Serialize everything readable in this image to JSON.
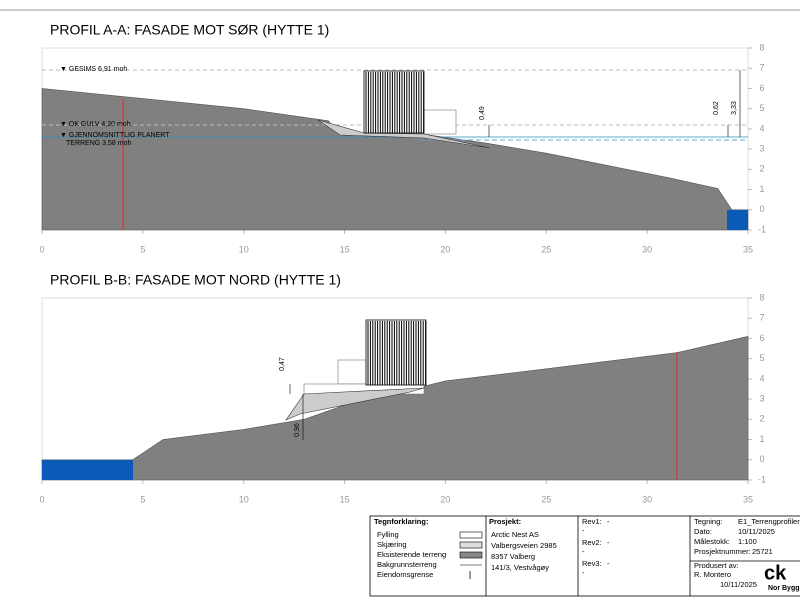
{
  "chart_data": [
    {
      "type": "area",
      "title": "PROFIL A-A: FASADE MOT SØR (HYTTE 1)",
      "x": [
        0,
        4,
        10,
        14.2,
        14.7,
        18.8,
        22,
        25,
        28,
        31,
        33.5,
        34.2,
        35
      ],
      "values": [
        6.0,
        5.6,
        5.0,
        4.4,
        3.75,
        3.75,
        3.3,
        2.8,
        2.2,
        1.6,
        1.05,
        0,
        0
      ],
      "color": "#808080",
      "xlim": [
        0,
        35
      ],
      "xticks": [
        0,
        5,
        10,
        15,
        20,
        25,
        30,
        35
      ],
      "ylim": [
        -1,
        8
      ],
      "yticks": [
        -1,
        0,
        1,
        2,
        3,
        4,
        5,
        6,
        7,
        8
      ],
      "annotations": [
        "▼ GESIMS 6,91 moh",
        "▼ OK GULV 4,20 moh",
        "▼ GJENNOMSNITTLIG PLANERT",
        "TERRENG 3,58 moh",
        "0,49",
        "0,62",
        "3,33"
      ]
    },
    {
      "type": "area",
      "title": "PROFIL B-B: FASADE MOT NORD (HYTTE 1)",
      "x": [
        0,
        4.5,
        6,
        10,
        13,
        15,
        17,
        18.8,
        20,
        25,
        31.5,
        35
      ],
      "values": [
        0,
        0,
        1.0,
        1.5,
        2.0,
        2.7,
        3.2,
        3.6,
        3.9,
        4.5,
        5.3,
        6.1
      ],
      "color": "#808080",
      "xlim": [
        0,
        35
      ],
      "xticks": [
        0,
        5,
        10,
        15,
        20,
        25,
        30,
        35
      ],
      "ylim": [
        -1,
        8
      ],
      "yticks": [
        -1,
        0,
        1,
        2,
        3,
        4,
        5,
        6,
        7,
        8
      ],
      "annotations": [
        "0,47",
        "0,96"
      ]
    }
  ],
  "title_block": {
    "legend_title": "Tegnforklaring:",
    "legend": [
      "Fylling",
      "Skjæring",
      "Eksisterende terreng",
      "Bakgrunnsterreng",
      "Eiendomsgrense"
    ],
    "project_title": "Prosjekt:",
    "project": [
      "Arctic Nest AS",
      "Valbergsveien 2985",
      "8357 Valberg",
      "141/3, Vestvågøy"
    ],
    "revisions": [
      "Rev1:",
      "-",
      "-",
      "Rev2:",
      "-",
      "-",
      "Rev3:",
      "-",
      "-"
    ],
    "drawing": [
      "Tegning:",
      "E1_Terrengprofiler",
      "Dato:",
      "10/11/2025",
      "Målestokk:",
      "1:100",
      "Prosjektnummer:",
      "25721"
    ],
    "produced": [
      "Produsert av:",
      "R. Montero",
      "10/11/2025"
    ],
    "logo": [
      "ck",
      "Nor Bygg"
    ]
  }
}
